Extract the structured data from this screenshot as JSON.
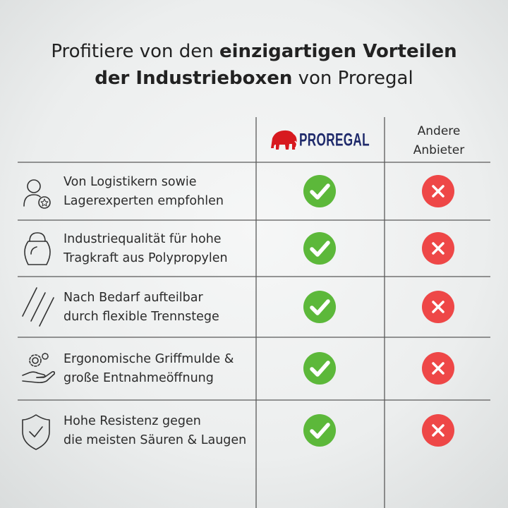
{
  "title": {
    "lines": [
      [
        {
          "text": "Profitiere von den ",
          "bold": false
        },
        {
          "text": "einzigartigen Vorteilen",
          "bold": true
        }
      ],
      [
        {
          "text": "der Industrieboxen",
          "bold": true
        },
        {
          "text": " von Proregal",
          "bold": false
        }
      ]
    ]
  },
  "columns": {
    "brand": "PROREGAL",
    "others": [
      "Andere",
      "Anbieter"
    ]
  },
  "rows": [
    {
      "lines": [
        "Von Logistikern sowie",
        "Lagerexperten empfohlen"
      ],
      "proregal": true,
      "others": false
    },
    {
      "lines": [
        "Industriequalität für hohe",
        "Tragkraft aus Polypropylen"
      ],
      "proregal": true,
      "others": false
    },
    {
      "lines": [
        "Nach Bedarf aufteilbar",
        "durch flexible Trennstege"
      ],
      "proregal": true,
      "others": false
    },
    {
      "lines": [
        "Ergonomische Griffmulde &",
        "große Entnahmeöffnung"
      ],
      "proregal": true,
      "others": false
    },
    {
      "lines": [
        "Hohe Resistenz gegen",
        "die meisten Säuren & Laugen"
      ],
      "proregal": true,
      "others": false
    }
  ]
}
